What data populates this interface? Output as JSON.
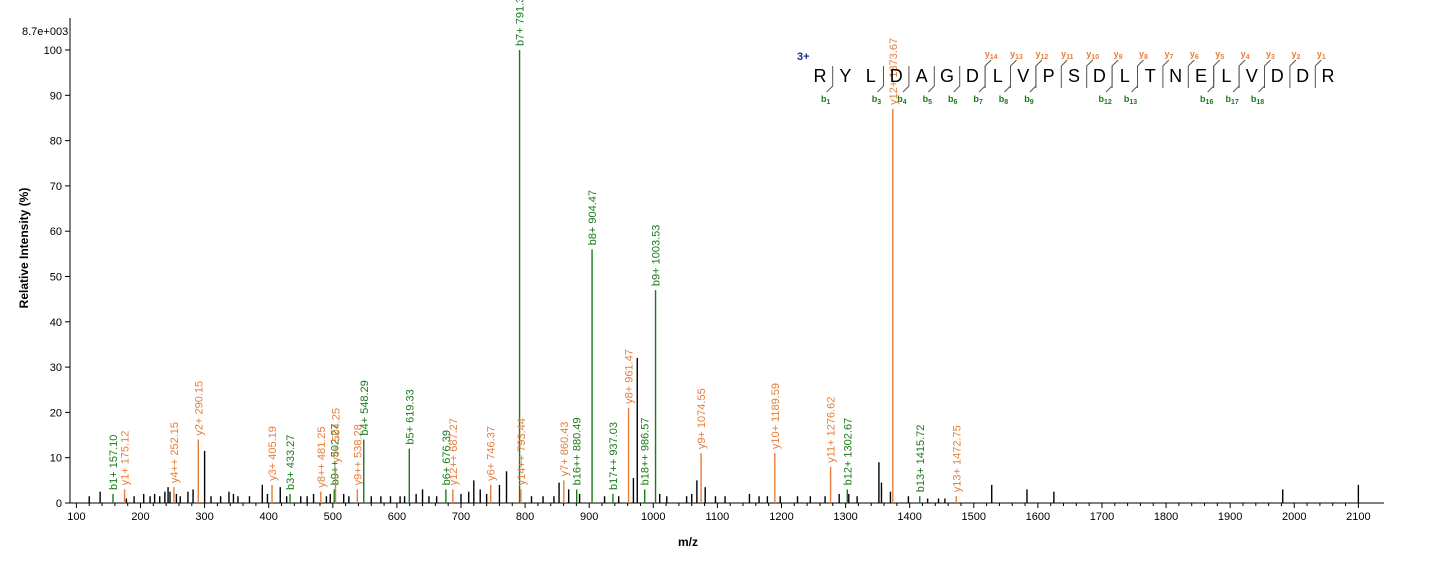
{
  "chart_data": {
    "type": "bar",
    "title": "",
    "xlabel": "m/z",
    "ylabel": "Relative   Intensity (%)",
    "max_intensity_label": "8.7e+003",
    "xlim": [
      90,
      2140
    ],
    "ylim": [
      0,
      100
    ],
    "x_ticks": [
      100,
      200,
      300,
      400,
      500,
      600,
      700,
      800,
      900,
      1000,
      1100,
      1200,
      1300,
      1400,
      1500,
      1600,
      1700,
      1800,
      1900,
      2000,
      2100
    ],
    "y_ticks": [
      0,
      10,
      20,
      30,
      40,
      50,
      60,
      70,
      80,
      90,
      100
    ],
    "colors": {
      "b_ion": "#1a7a1a",
      "y_ion": "#e67e3c",
      "other": "#000000",
      "axis": "#000000",
      "charge": "#1c2a8a"
    },
    "labeled_peaks": [
      {
        "mz": 157.1,
        "intensity": 2,
        "type": "b",
        "label": "b1+ 157.10"
      },
      {
        "mz": 175.12,
        "intensity": 3,
        "type": "y",
        "label": "y1+ 175.12"
      },
      {
        "mz": 252.15,
        "intensity": 3.5,
        "type": "y",
        "label": "y4++ 252.15"
      },
      {
        "mz": 290.15,
        "intensity": 14,
        "type": "y",
        "label": "y2+ 290.15"
      },
      {
        "mz": 405.19,
        "intensity": 4,
        "type": "y",
        "label": "y3+ 405.19"
      },
      {
        "mz": 433.27,
        "intensity": 2,
        "type": "b",
        "label": "b3+ 433.27"
      },
      {
        "mz": 481.25,
        "intensity": 2.5,
        "type": "y",
        "label": "y8++ 481.25"
      },
      {
        "mz": 502.27,
        "intensity": 3,
        "type": "b",
        "label": "b9++ 502.27"
      },
      {
        "mz": 504.25,
        "intensity": 8,
        "type": "y",
        "label": "y4+ 504.25"
      },
      {
        "mz": 538.28,
        "intensity": 3,
        "type": "y",
        "label": "y9++ 538.28"
      },
      {
        "mz": 548.29,
        "intensity": 14,
        "type": "b",
        "label": "b4+ 548.29"
      },
      {
        "mz": 619.33,
        "intensity": 12,
        "type": "b",
        "label": "b5+ 619.33"
      },
      {
        "mz": 676.39,
        "intensity": 3,
        "type": "b",
        "label": "b6+ 676.39"
      },
      {
        "mz": 687.27,
        "intensity": 3,
        "type": "y",
        "label": "y12++ 687.27"
      },
      {
        "mz": 746.37,
        "intensity": 4,
        "type": "y",
        "label": "y6+ 746.37"
      },
      {
        "mz": 791.38,
        "intensity": 100,
        "type": "b",
        "label": "b7+ 791.38"
      },
      {
        "mz": 793.44,
        "intensity": 3,
        "type": "y",
        "label": "y14++ 793.44"
      },
      {
        "mz": 860.43,
        "intensity": 5,
        "type": "y",
        "label": "y7+ 860.43"
      },
      {
        "mz": 880.49,
        "intensity": 3,
        "type": "b",
        "label": "b16++ 880.49"
      },
      {
        "mz": 904.47,
        "intensity": 56,
        "type": "b",
        "label": "b8+ 904.47"
      },
      {
        "mz": 937.03,
        "intensity": 2,
        "type": "b",
        "label": "b17++ 937.03"
      },
      {
        "mz": 961.47,
        "intensity": 21,
        "type": "y",
        "label": "y8+ 961.47"
      },
      {
        "mz": 986.57,
        "intensity": 3,
        "type": "b",
        "label": "b18++ 986.57"
      },
      {
        "mz": 1003.53,
        "intensity": 47,
        "type": "b",
        "label": "b9+ 1003.53"
      },
      {
        "mz": 1074.55,
        "intensity": 11,
        "type": "y",
        "label": "y9+ 1074.55"
      },
      {
        "mz": 1189.59,
        "intensity": 11,
        "type": "y",
        "label": "y10+ 1189.59"
      },
      {
        "mz": 1276.62,
        "intensity": 8,
        "type": "y",
        "label": "y11+ 1276.62"
      },
      {
        "mz": 1302.67,
        "intensity": 3,
        "type": "b",
        "label": "b12+ 1302.67"
      },
      {
        "mz": 1373.67,
        "intensity": 87,
        "type": "y",
        "label": "y12+ 1373.67"
      },
      {
        "mz": 1415.72,
        "intensity": 1.5,
        "type": "b",
        "label": "b13+ 1415.72"
      },
      {
        "mz": 1472.75,
        "intensity": 1.5,
        "type": "y",
        "label": "y13+ 1472.75"
      }
    ],
    "unlabeled_peaks": [
      [
        120,
        1.5
      ],
      [
        137,
        2.5
      ],
      [
        178,
        1
      ],
      [
        190,
        1.5
      ],
      [
        205,
        2
      ],
      [
        215,
        1.5
      ],
      [
        222,
        2
      ],
      [
        230,
        1.5
      ],
      [
        238,
        2.5
      ],
      [
        243,
        3.5
      ],
      [
        246,
        2.5
      ],
      [
        256,
        2
      ],
      [
        262,
        1.5
      ],
      [
        274,
        2.5
      ],
      [
        282,
        3
      ],
      [
        300,
        11.5
      ],
      [
        310,
        1.5
      ],
      [
        325,
        1.5
      ],
      [
        338,
        2.5
      ],
      [
        345,
        2
      ],
      [
        352,
        1.5
      ],
      [
        370,
        1.5
      ],
      [
        390,
        4
      ],
      [
        398,
        2
      ],
      [
        418,
        3.5
      ],
      [
        428,
        1.5
      ],
      [
        450,
        1.5
      ],
      [
        460,
        1.5
      ],
      [
        470,
        2
      ],
      [
        490,
        1.5
      ],
      [
        496,
        2
      ],
      [
        517,
        2
      ],
      [
        525,
        1.5
      ],
      [
        560,
        1.5
      ],
      [
        575,
        1.5
      ],
      [
        590,
        1.5
      ],
      [
        605,
        1.5
      ],
      [
        612,
        1.5
      ],
      [
        630,
        2
      ],
      [
        640,
        3
      ],
      [
        650,
        1.5
      ],
      [
        662,
        1.5
      ],
      [
        700,
        2
      ],
      [
        712,
        2.5
      ],
      [
        720,
        5
      ],
      [
        730,
        3
      ],
      [
        740,
        2
      ],
      [
        760,
        4
      ],
      [
        771,
        7
      ],
      [
        810,
        1.5
      ],
      [
        828,
        1.5
      ],
      [
        845,
        1.5
      ],
      [
        853,
        4.5
      ],
      [
        868,
        3
      ],
      [
        885,
        2
      ],
      [
        924,
        1.5
      ],
      [
        946,
        1.5
      ],
      [
        969,
        5.5
      ],
      [
        975,
        32
      ],
      [
        1010,
        2
      ],
      [
        1021,
        1.5
      ],
      [
        1052,
        1.5
      ],
      [
        1060,
        2
      ],
      [
        1068,
        5
      ],
      [
        1081,
        3.5
      ],
      [
        1097,
        1.5
      ],
      [
        1112,
        1.5
      ],
      [
        1150,
        2
      ],
      [
        1165,
        1.5
      ],
      [
        1178,
        1.5
      ],
      [
        1198,
        1.5
      ],
      [
        1225,
        1.5
      ],
      [
        1245,
        1.5
      ],
      [
        1268,
        1.5
      ],
      [
        1290,
        2
      ],
      [
        1305,
        2
      ],
      [
        1318,
        1.5
      ],
      [
        1352,
        9
      ],
      [
        1356,
        4.5
      ],
      [
        1370,
        2.5
      ],
      [
        1398,
        1.5
      ],
      [
        1428,
        1
      ],
      [
        1445,
        1
      ],
      [
        1455,
        1
      ],
      [
        1528,
        4
      ],
      [
        1583,
        3
      ],
      [
        1625,
        2.5
      ],
      [
        1982,
        3
      ],
      [
        2100,
        4
      ]
    ]
  },
  "sequence": {
    "charge_label": "3+",
    "residues": [
      "R",
      "Y",
      "L",
      "D",
      "A",
      "G",
      "D",
      "L",
      "V",
      "P",
      "S",
      "D",
      "L",
      "T",
      "N",
      "E",
      "L",
      "V",
      "D",
      "D",
      "R"
    ],
    "b_ions": [
      {
        "after": 1,
        "label": "b",
        "num": "1"
      },
      {
        "after": 3,
        "label": "b",
        "num": "3"
      },
      {
        "after": 4,
        "label": "b",
        "num": "4"
      },
      {
        "after": 5,
        "label": "b",
        "num": "5"
      },
      {
        "after": 6,
        "label": "b",
        "num": "6"
      },
      {
        "after": 7,
        "label": "b",
        "num": "7"
      },
      {
        "after": 8,
        "label": "b",
        "num": "8"
      },
      {
        "after": 9,
        "label": "b",
        "num": "9"
      },
      {
        "after": 12,
        "label": "b",
        "num": "12"
      },
      {
        "after": 13,
        "label": "b",
        "num": "13"
      },
      {
        "after": 16,
        "label": "b",
        "num": "16"
      },
      {
        "after": 17,
        "label": "b",
        "num": "17"
      },
      {
        "after": 18,
        "label": "b",
        "num": "18"
      }
    ],
    "y_ions": [
      {
        "after": 7,
        "label": "y",
        "num": "14"
      },
      {
        "after": 8,
        "label": "y",
        "num": "13"
      },
      {
        "after": 9,
        "label": "y",
        "num": "12"
      },
      {
        "after": 10,
        "label": "y",
        "num": "11"
      },
      {
        "after": 11,
        "label": "y",
        "num": "10"
      },
      {
        "after": 12,
        "label": "y",
        "num": "9"
      },
      {
        "after": 13,
        "label": "y",
        "num": "8"
      },
      {
        "after": 14,
        "label": "y",
        "num": "7"
      },
      {
        "after": 15,
        "label": "y",
        "num": "6"
      },
      {
        "after": 16,
        "label": "y",
        "num": "5"
      },
      {
        "after": 17,
        "label": "y",
        "num": "4"
      },
      {
        "after": 18,
        "label": "y",
        "num": "3"
      },
      {
        "after": 19,
        "label": "y",
        "num": "2"
      },
      {
        "after": 20,
        "label": "y",
        "num": "1"
      }
    ]
  }
}
